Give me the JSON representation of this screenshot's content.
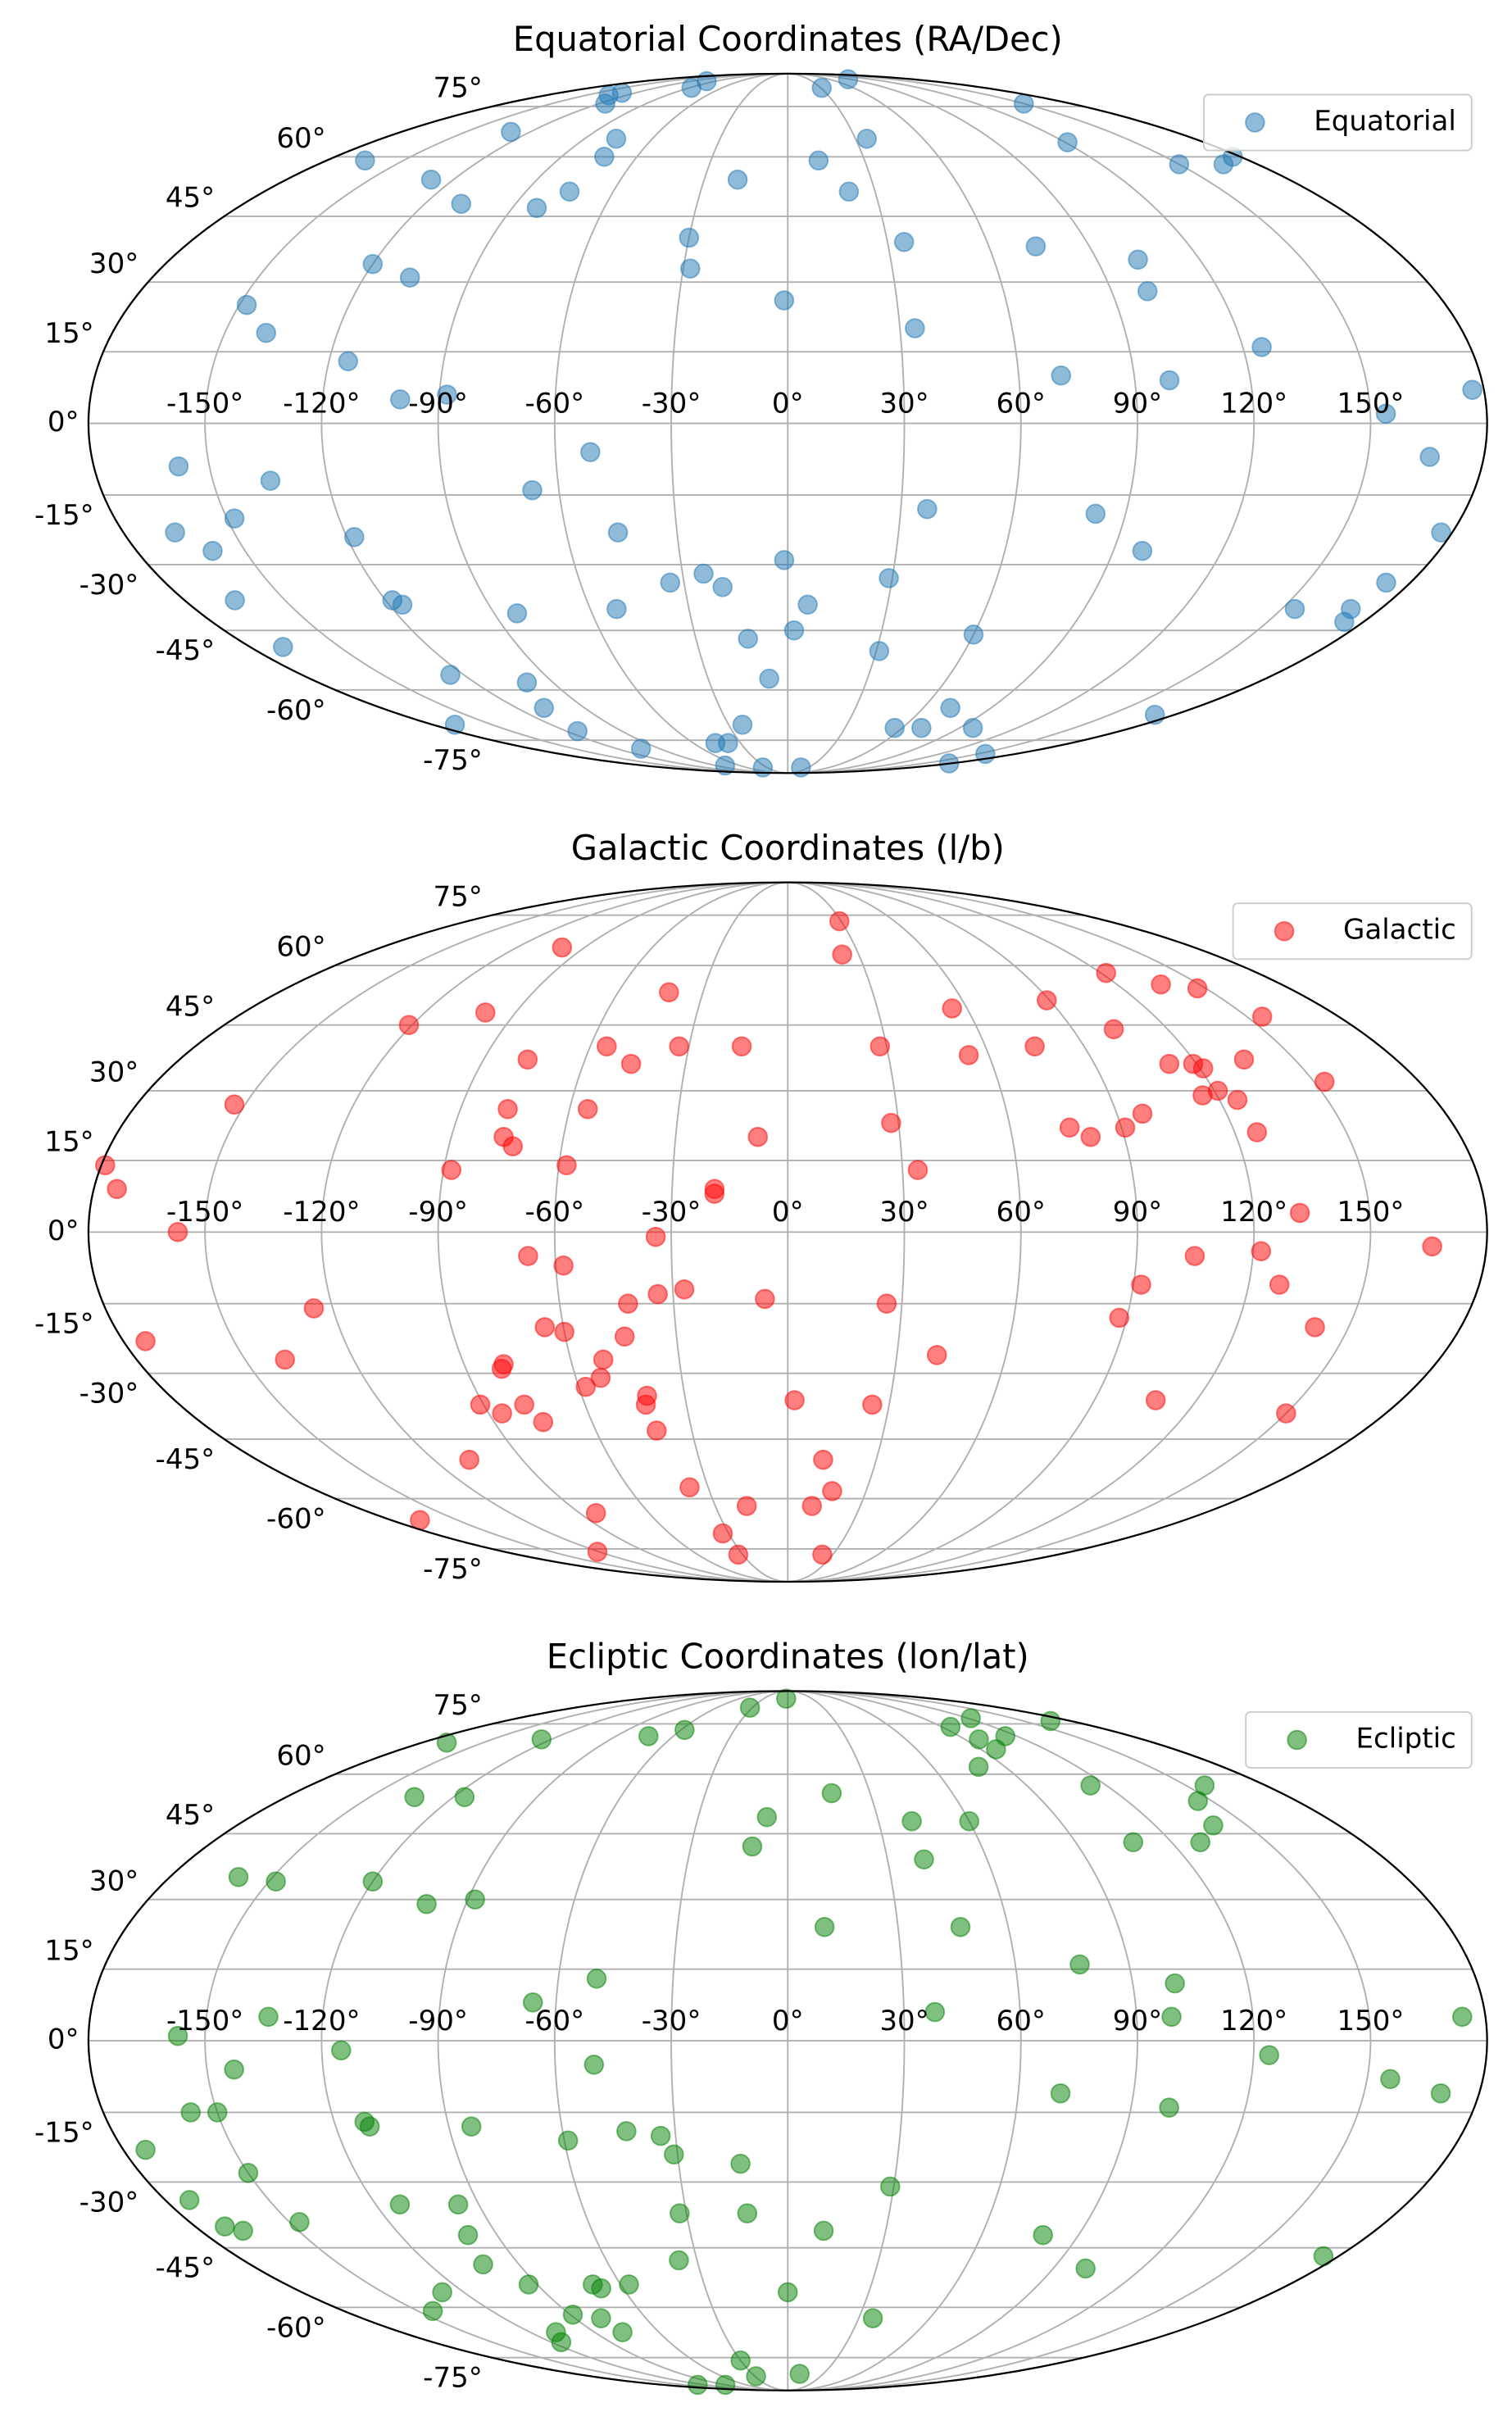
{
  "chart_data": [
    {
      "type": "scatter",
      "projection": "mollweide",
      "title": "Equatorial Coordinates (RA/Dec)",
      "grid": true,
      "legend": "upper right",
      "alpha": 0.5,
      "xlim": [
        -180,
        180
      ],
      "ylim": [
        -90,
        90
      ],
      "xticks": [
        {
          "value": -150,
          "label": "-150°"
        },
        {
          "value": -120,
          "label": "-120°"
        },
        {
          "value": -90,
          "label": "-90°"
        },
        {
          "value": -60,
          "label": "-60°"
        },
        {
          "value": -30,
          "label": "-30°"
        },
        {
          "value": 0,
          "label": "0°"
        },
        {
          "value": 30,
          "label": "30°"
        },
        {
          "value": 60,
          "label": "60°"
        },
        {
          "value": 90,
          "label": "90°"
        },
        {
          "value": 120,
          "label": "120°"
        },
        {
          "value": 150,
          "label": "150°"
        }
      ],
      "yticks": [
        {
          "value": -75,
          "label": "-75°"
        },
        {
          "value": -60,
          "label": "-60°"
        },
        {
          "value": -45,
          "label": "-45°"
        },
        {
          "value": -30,
          "label": "-30°"
        },
        {
          "value": -15,
          "label": "-15°"
        },
        {
          "value": 0,
          "label": "0°"
        },
        {
          "value": 15,
          "label": "15°"
        },
        {
          "value": 30,
          "label": "30°"
        },
        {
          "value": 45,
          "label": "45°"
        },
        {
          "value": 60,
          "label": "60°"
        },
        {
          "value": 75,
          "label": "75°"
        }
      ],
      "series": [
        {
          "name": "Equatorial",
          "color": "#1f77b4",
          "x": [
            -133,
            -116,
            -131,
            -88,
            -101,
            31,
            87,
            150,
            -129,
            -76,
            -73,
            -165,
            -128,
            -108,
            -82,
            -75,
            -18,
            12,
            35,
            21,
            121,
            150,
            167,
            177,
            -30,
            -28,
            -120,
            -107,
            35,
            74,
            102,
            100,
            -148,
            -139,
            -1,
            34,
            125,
            -115,
            71,
            -100,
            -88,
            99,
            177,
            154,
            -158,
            -51,
            166,
            -135,
            -67,
            37,
            82,
            -148,
            -166,
            -159,
            -118,
            -46,
            177,
            98,
            -1,
            -24,
            -19,
            -34,
            29,
            -165,
            -118,
            -116,
            -83,
            -52,
            6,
            173,
            154,
            171,
            174,
            2,
            -13,
            -169,
            31,
            60,
            -125,
            -100,
            -7,
            -108,
            72,
            171,
            -169,
            -114,
            -23,
            56,
            70,
            97,
            -103,
            -46,
            -38,
            -78,
            -36,
            19,
            178,
            156
          ],
          "values": [
            79,
            76,
            80,
            82,
            85,
            82,
            86,
            76,
            67,
            65,
            60,
            59,
            54,
            48,
            47,
            51,
            54,
            59,
            65,
            51,
            64,
            58,
            58,
            60,
            40,
            33,
            34,
            31,
            39,
            38,
            35,
            28,
            25,
            19,
            26,
            20,
            16,
            13,
            10,
            5,
            6,
            9,
            7,
            2,
            -9,
            -6,
            -7,
            -12,
            -14,
            -18,
            -19,
            -20,
            -23,
            -27,
            -24,
            -23,
            -23,
            -27,
            -29,
            -32,
            -35,
            -34,
            -33,
            -38,
            -38,
            -39,
            -41,
            -40,
            -39,
            -34,
            -40,
            -40,
            -43,
            -45,
            -47,
            -49,
            -50,
            -46,
            -56,
            -58,
            -57,
            -65,
            -65,
            -67,
            -70,
            -72,
            -70,
            -71,
            -71,
            -71,
            -78,
            -76,
            -76,
            -85,
            -86,
            -86,
            -84,
            -80
          ]
        }
      ]
    },
    {
      "type": "scatter",
      "projection": "mollweide",
      "title": "Galactic Coordinates (l/b)",
      "grid": true,
      "legend": "upper right",
      "alpha": 0.5,
      "xlim": [
        -180,
        180
      ],
      "ylim": [
        -90,
        90
      ],
      "xticks": [
        {
          "value": -150,
          "label": "-150°"
        },
        {
          "value": -120,
          "label": "-120°"
        },
        {
          "value": -90,
          "label": "-90°"
        },
        {
          "value": -60,
          "label": "-60°"
        },
        {
          "value": -30,
          "label": "-30°"
        },
        {
          "value": 0,
          "label": "0°"
        },
        {
          "value": 30,
          "label": "30°"
        },
        {
          "value": 60,
          "label": "60°"
        },
        {
          "value": 90,
          "label": "90°"
        },
        {
          "value": 120,
          "label": "120°"
        },
        {
          "value": 150,
          "label": "150°"
        }
      ],
      "yticks": [
        {
          "value": -75,
          "label": "-75°"
        },
        {
          "value": -60,
          "label": "-60°"
        },
        {
          "value": -45,
          "label": "-45°"
        },
        {
          "value": -30,
          "label": "-30°"
        },
        {
          "value": -15,
          "label": "-15°"
        },
        {
          "value": 0,
          "label": "0°"
        },
        {
          "value": 15,
          "label": "15°"
        },
        {
          "value": 30,
          "label": "30°"
        },
        {
          "value": 45,
          "label": "45°"
        },
        {
          "value": 60,
          "label": "60°"
        },
        {
          "value": 75,
          "label": "75°"
        }
      ],
      "series": [
        {
          "name": "Galactic",
          "color": "#ff0000",
          "x": [
            29,
            23,
            -100,
            -42,
            122,
            136,
            147,
            55,
            89,
            -121,
            -100,
            155,
            103,
            -55,
            -46,
            -33,
            -14,
            -77,
            28,
            54,
            75,
            135,
            112,
            119,
            121,
            153,
            121,
            125,
            116,
            -153,
            -77,
            -55,
            28,
            76,
            97,
            81,
            91,
            126,
            -76,
            -73,
            -8,
            -179,
            -88,
            -58,
            34,
            -174,
            -19,
            -19,
            132,
            -157,
            -34,
            166,
            -67,
            -58,
            105,
            122,
            92,
            128,
            -27,
            -34,
            -42,
            -6,
            26,
            -125,
            -65,
            -60,
            -44,
            88,
            141,
            -174,
            41,
            -139,
            -79,
            -80,
            -51,
            -53,
            -58,
            -41,
            -42,
            2,
            25,
            -91,
            -86,
            -78,
            -75,
            -41,
            108,
            150,
            -108,
            12,
            17,
            -37,
            -167,
            -83,
            -17,
            10,
            -33,
            -121,
            -33,
            23
          ],
          "values": [
            73,
            63,
            65,
            53,
            58,
            55,
            54,
            49,
            51,
            45,
            48,
            47,
            44,
            40,
            36,
            40,
            40,
            37,
            40,
            38,
            40,
            37,
            36,
            36,
            35,
            32,
            30,
            28,
            29,
            27,
            26,
            26,
            23,
            22,
            25,
            20,
            22,
            21,
            20,
            18,
            20,
            14,
            13,
            14,
            13,
            9,
            9,
            8,
            4,
            0,
            -1,
            -3,
            -5,
            -7,
            -5,
            -4,
            -11,
            -11,
            -12,
            -13,
            -15,
            -14,
            -15,
            -16,
            -20,
            -21,
            -22,
            -18,
            -20,
            -23,
            -26,
            -27,
            -28,
            -29,
            -27,
            -31,
            -33,
            -35,
            -37,
            -36,
            -37,
            -37,
            -39,
            -37,
            -41,
            -43,
            -36,
            -39,
            -50,
            -50,
            -58,
            -57,
            -66,
            -64,
            -62,
            -62,
            -70,
            -76,
            -77,
            -77
          ]
        }
      ]
    },
    {
      "type": "scatter",
      "projection": "mollweide",
      "title": "Ecliptic Coordinates (lon/lat)",
      "grid": true,
      "legend": "upper right",
      "alpha": 0.5,
      "xlim": [
        -180,
        180
      ],
      "ylim": [
        -90,
        90
      ],
      "xticks": [
        {
          "value": -150,
          "label": "-150°"
        },
        {
          "value": -120,
          "label": "-120°"
        },
        {
          "value": -90,
          "label": "-90°"
        },
        {
          "value": -60,
          "label": "-60°"
        },
        {
          "value": -30,
          "label": "-30°"
        },
        {
          "value": 0,
          "label": "0°"
        },
        {
          "value": 30,
          "label": "30°"
        },
        {
          "value": 60,
          "label": "60°"
        },
        {
          "value": 90,
          "label": "90°"
        },
        {
          "value": 120,
          "label": "120°"
        },
        {
          "value": 150,
          "label": "150°"
        }
      ],
      "yticks": [
        {
          "value": -75,
          "label": "-75°"
        },
        {
          "value": -60,
          "label": "-60°"
        },
        {
          "value": -45,
          "label": "-45°"
        },
        {
          "value": -30,
          "label": "-30°"
        },
        {
          "value": -15,
          "label": "-15°"
        },
        {
          "value": 0,
          "label": "0°"
        },
        {
          "value": 15,
          "label": "15°"
        },
        {
          "value": 30,
          "label": "30°"
        },
        {
          "value": 45,
          "label": "45°"
        },
        {
          "value": 60,
          "label": "60°"
        },
        {
          "value": 75,
          "label": "75°"
        }
      ],
      "series": [
        {
          "name": "Ecliptic",
          "color": "#008000",
          "x": [
            -2,
            -32,
            -58,
            -73,
            -125,
            -168,
            95,
            122,
            167,
            97,
            114,
            97,
            79,
            -134,
            -116,
            16,
            114,
            157,
            145,
            139,
            129,
            108,
            -7,
            41,
            60,
            -11,
            41,
            -160,
            -148,
            -120,
            -101,
            -88,
            10,
            47,
            77,
            101,
            -66,
            -50,
            -134,
            38,
            99,
            174,
            -157,
            -115,
            -143,
            -50,
            124,
            156,
            170,
            71,
            -157,
            -150,
            -112,
            -111,
            -84,
            100,
            -174,
            -59,
            -43,
            -34,
            -31,
            -13,
            -150,
            29,
            -173,
            -113,
            -96,
            -32,
            -12,
            -171,
            -167,
            -147,
            -99,
            11,
            79,
            175,
            101,
            -102,
            -93,
            -70,
            -68,
            -57,
            -36,
            0,
            -128,
            -144,
            -89,
            -79,
            -108,
            -115,
            -77,
            36,
            -30,
            -29,
            10,
            -130,
            -90
          ],
          "values": [
            85,
            81,
            73,
            71,
            70,
            69,
            74,
            77,
            76,
            70,
            71,
            67,
            62,
            54,
            54,
            55,
            57,
            57,
            53,
            47,
            43,
            43,
            49,
            48,
            48,
            42,
            39,
            35,
            34,
            34,
            29,
            30,
            24,
            24,
            16,
            12,
            8,
            13,
            5,
            6,
            5,
            5,
            1,
            -2,
            -6,
            -5,
            -3,
            -8,
            -11,
            -11,
            -15,
            -15,
            -17,
            -18,
            -18,
            -14,
            -23,
            -21,
            -19,
            -20,
            -24,
            -26,
            -28,
            -31,
            -34,
            -35,
            -35,
            -37,
            -37,
            -40,
            -41,
            -39,
            -42,
            -41,
            -42,
            -47,
            -50,
            -49,
            -54,
            -54,
            -55,
            -54,
            -48,
            -56,
            -56,
            -61,
            -62,
            -63,
            -67,
            -70,
            -67,
            -63,
            -76,
            -82,
            -81,
            -86,
            -86
          ]
        }
      ]
    }
  ]
}
